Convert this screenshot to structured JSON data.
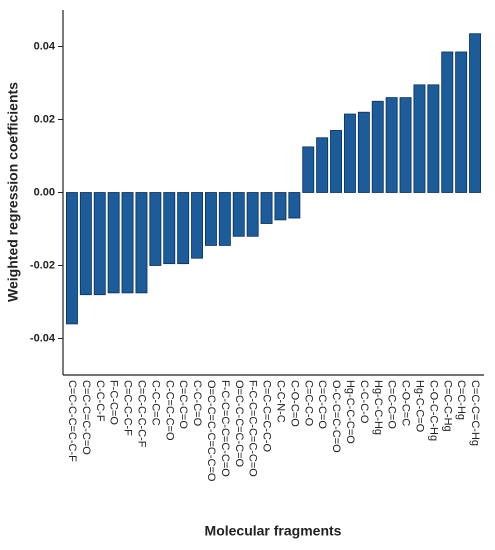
{
  "chart_data": {
    "type": "bar",
    "x_label": "Molecular fragments",
    "y_label": "Weighted regression coefficients",
    "categories": [
      "C=C-C-C=C-C-F",
      "C=C-C=C-C=O",
      "C-C-C-F",
      "F-C-C=O",
      "C=C-C-C-F",
      "C=C-C-C-C-F",
      "C-C-C=C",
      "C-C=C-C=O",
      "C=C-C=O",
      "C-C-C=O",
      "O=C-C=C-C=C-C=O",
      "F-C-C=C-C=C-C=O",
      "O=C-C-C=C-C=O",
      "F-C-C=C-C=C-C=O",
      "C=C-C=C-C-O",
      "C-C-N-C",
      "C-O-C=O",
      "C=C-C-O",
      "C=C-C=O",
      "O-C-C=C-C=O",
      "Hg-C-C-C=O",
      "C-C-C-O",
      "Hg-C-C-Hg",
      "C=C-C=O",
      "C-O-C=C",
      "Hg-C-C=O",
      "C-O-C-C-Hg",
      "C=C-C-Hg",
      "C=C-Hg",
      "C=C-C=C-Hg"
    ],
    "values": [
      -0.036,
      -0.028,
      -0.028,
      -0.0275,
      -0.0275,
      -0.0275,
      -0.02,
      -0.0195,
      -0.0195,
      -0.018,
      -0.0145,
      -0.0145,
      -0.012,
      -0.012,
      -0.0085,
      -0.0075,
      -0.007,
      0.0125,
      0.015,
      0.017,
      0.0215,
      0.022,
      0.025,
      0.026,
      0.026,
      0.0295,
      0.0295,
      0.0385,
      0.0385,
      0.0435
    ],
    "color": "#1c5c9a",
    "ylim": [
      -0.05,
      0.05
    ],
    "yticks": [
      {
        "value": -0.04,
        "label": "-0.04"
      },
      {
        "value": -0.02,
        "label": "-0.02"
      },
      {
        "value": 0,
        "label": "0.00"
      },
      {
        "value": 0.02,
        "label": "0.02"
      },
      {
        "value": 0.04,
        "label": "0.04"
      }
    ]
  }
}
